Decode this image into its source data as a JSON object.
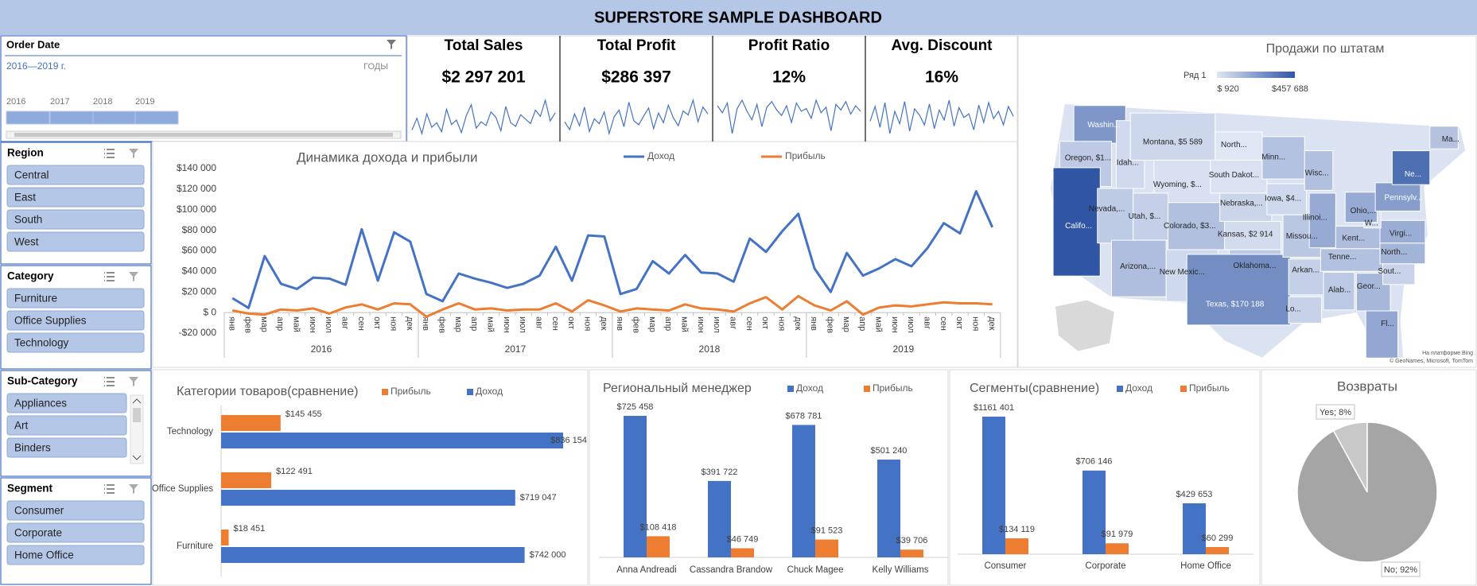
{
  "header": {
    "title": "SUPERSTORE SAMPLE  DASHBOARD"
  },
  "timeline": {
    "title": "Order Date",
    "range": "2016—2019 г.",
    "unit": "ГОДЫ",
    "years": [
      "2016",
      "2017",
      "2018",
      "2019"
    ]
  },
  "kpis": [
    {
      "title": "Total Sales",
      "value": "$2 297 201",
      "spark": [
        22,
        35,
        18,
        40,
        25,
        30,
        20,
        45,
        28,
        33,
        19,
        38,
        50,
        24,
        31,
        27,
        42,
        36,
        21,
        48,
        30,
        26,
        39,
        34,
        29,
        44,
        37,
        55,
        32,
        41
      ]
    },
    {
      "title": "Total Profit",
      "value": "$286 397",
      "spark": [
        30,
        22,
        38,
        26,
        45,
        20,
        33,
        28,
        40,
        18,
        35,
        42,
        25,
        50,
        31,
        27,
        36,
        44,
        23,
        39,
        29,
        47,
        34,
        26,
        41,
        37,
        52,
        30,
        45,
        38
      ]
    },
    {
      "title": "Profit Ratio",
      "value": "12%",
      "spark": [
        40,
        35,
        42,
        20,
        38,
        44,
        36,
        30,
        41,
        25,
        39,
        43,
        37,
        33,
        40,
        28,
        42,
        36,
        38,
        31,
        44,
        35,
        39,
        22,
        41,
        37,
        43,
        34,
        40,
        36
      ]
    },
    {
      "title": "Avg. Discount",
      "value": "16%",
      "spark": [
        30,
        42,
        25,
        45,
        20,
        38,
        28,
        46,
        22,
        40,
        35,
        27,
        44,
        24,
        39,
        31,
        47,
        26,
        41,
        33,
        36,
        23,
        43,
        29,
        45,
        32,
        38,
        27,
        42,
        34
      ]
    }
  ],
  "slicers": [
    {
      "title": "Region",
      "items": [
        "Central",
        "East",
        "South",
        "West"
      ]
    },
    {
      "title": "Category",
      "items": [
        "Furniture",
        "Office Supplies",
        "Technology"
      ]
    },
    {
      "title": "Sub-Category",
      "items": [
        "Appliances",
        "Art",
        "Binders"
      ]
    },
    {
      "title": "Segment",
      "items": [
        "Consumer",
        "Corporate",
        "Home Office"
      ]
    }
  ],
  "chart_data": [
    {
      "type": "line",
      "title": "Динамика дохода и прибыли",
      "categories": [
        "янв",
        "фев",
        "мар",
        "апр",
        "май",
        "июн",
        "июл",
        "авг",
        "сен",
        "окт",
        "ноя",
        "дек",
        "янв",
        "фев",
        "мар",
        "апр",
        "май",
        "июн",
        "июл",
        "авг",
        "сен",
        "окт",
        "ноя",
        "дек",
        "янв",
        "фев",
        "мар",
        "апр",
        "май",
        "июн",
        "июл",
        "авг",
        "сен",
        "окт",
        "ноя",
        "дек",
        "янв",
        "фев",
        "мар",
        "апр",
        "май",
        "июн",
        "июл",
        "авг",
        "сен",
        "окт",
        "ноя",
        "дек"
      ],
      "year_labels": [
        "2016",
        "2017",
        "2018",
        "2019"
      ],
      "ylim": [
        -20000,
        140000
      ],
      "yticks": [
        {
          "value": -20000,
          "label": "-$20 000"
        },
        {
          "value": 0,
          "label": "$ 0"
        },
        {
          "value": 20000,
          "label": "$20 000"
        },
        {
          "value": 40000,
          "label": "$40 000"
        },
        {
          "value": 60000,
          "label": "$60 000"
        },
        {
          "value": 80000,
          "label": "$80 000"
        },
        {
          "value": 100000,
          "label": "$100 000"
        },
        {
          "value": 120000,
          "label": "$120 000"
        },
        {
          "value": 140000,
          "label": "$140 000"
        }
      ],
      "grid": false,
      "series": [
        {
          "name": "Доход",
          "color": "#4472c4",
          "values": [
            14000,
            4500,
            55000,
            28000,
            23000,
            34000,
            33000,
            27000,
            81000,
            31000,
            78000,
            69000,
            18000,
            11000,
            38000,
            33000,
            29000,
            24000,
            28000,
            36000,
            64000,
            31000,
            75000,
            74000,
            18000,
            23000,
            50000,
            38000,
            56000,
            39000,
            38000,
            30000,
            72000,
            59000,
            79000,
            96000,
            43000,
            20000,
            58000,
            36000,
            43000,
            52000,
            45000,
            63000,
            87000,
            77000,
            118000,
            83000
          ]
        },
        {
          "name": "Прибыль",
          "color": "#ed7d31",
          "values": [
            2000,
            -1000,
            -2000,
            3000,
            2000,
            4000,
            -1000,
            5000,
            8000,
            3000,
            9000,
            8000,
            -4000,
            3000,
            9000,
            3000,
            4000,
            2000,
            3000,
            3000,
            9000,
            1000,
            12000,
            7000,
            1000,
            4000,
            3000,
            2000,
            8000,
            4000,
            3000,
            1000,
            9000,
            15000,
            3000,
            16000,
            7000,
            2000,
            11000,
            -2000,
            5000,
            7000,
            6000,
            8000,
            10000,
            9000,
            9000,
            8000
          ]
        }
      ]
    },
    {
      "type": "barh",
      "title": "Категории товаров(сравнение)",
      "categories": [
        "Technology",
        "Office Supplies",
        "Furniture"
      ],
      "series": [
        {
          "name": "Прибыль",
          "color": "#ed7d31",
          "values": [
            145455,
            122491,
            18451
          ],
          "value_labels": [
            "$145 455",
            "$122 491",
            "$18 451"
          ]
        },
        {
          "name": "Доход",
          "color": "#4472c4",
          "values": [
            836154,
            719047,
            742000
          ],
          "value_labels": [
            "$836 154",
            "$719 047",
            "$742 000"
          ]
        }
      ]
    },
    {
      "type": "bar",
      "title": "Региональный менеджер",
      "categories": [
        "Anna Andreadi",
        "Cassandra Brandow",
        "Chuck Magee",
        "Kelly Williams"
      ],
      "series": [
        {
          "name": "Доход",
          "color": "#4472c4",
          "values": [
            725458,
            391722,
            678781,
            501240
          ],
          "value_labels": [
            "$725 458",
            "$391 722",
            "$678 781",
            "$501 240"
          ]
        },
        {
          "name": "Прибыль",
          "color": "#ed7d31",
          "values": [
            108418,
            46749,
            91523,
            39706
          ],
          "value_labels": [
            "$108 418",
            "$46 749",
            "$91 523",
            "$39 706"
          ]
        }
      ]
    },
    {
      "type": "bar",
      "title": "Сегменты(сравнение)",
      "categories": [
        "Consumer",
        "Corporate",
        "Home Office"
      ],
      "series": [
        {
          "name": "Доход",
          "color": "#4472c4",
          "values": [
            1161401,
            706146,
            429653
          ],
          "value_labels": [
            "$1161 401",
            "$706 146",
            "$429 653"
          ]
        },
        {
          "name": "Прибыль",
          "color": "#ed7d31",
          "values": [
            134119,
            91979,
            60299
          ],
          "value_labels": [
            "$134 119",
            "$91 979",
            "$60 299"
          ]
        }
      ]
    },
    {
      "type": "pie",
      "title": "Возвраты",
      "categories": [
        "Yes",
        "No"
      ],
      "values": [
        8,
        92
      ],
      "value_labels": [
        "Yes; 8%",
        "No; 92%"
      ],
      "colors": [
        "#c8c8c8",
        "#a5a5a5"
      ]
    },
    {
      "type": "map",
      "title": "Продажи по штатам",
      "legend_title": "Ряд 1",
      "legend_min": {
        "value": 920,
        "label": "$ 920"
      },
      "legend_max": {
        "value": 457688,
        "label": "$457 688"
      },
      "colors": [
        "#dfe6f4",
        "#2f55a4"
      ],
      "states": [
        {
          "label": "Washin...",
          "value": 138641
        },
        {
          "label": "Oregon, $1...",
          "value": 17431
        },
        {
          "label": "Califo...",
          "value": 457688
        },
        {
          "label": "Nevada,...",
          "value": 16729
        },
        {
          "label": "Idah...",
          "value": 4382
        },
        {
          "label": "Montana, $5 589",
          "value": 5589
        },
        {
          "label": "Wyoming, $...",
          "value": 1603
        },
        {
          "label": "Utah, $...",
          "value": 11220
        },
        {
          "label": "Arizona,...",
          "value": 35282
        },
        {
          "label": "Colorado, $3...",
          "value": 32108
        },
        {
          "label": "New Mexic...",
          "value": 4784
        },
        {
          "label": "North...",
          "value": 920
        },
        {
          "label": "South Dakot...",
          "value": 1316
        },
        {
          "label": "Nebraska,...",
          "value": 7465
        },
        {
          "label": "Kansas, $2 914",
          "value": 2914
        },
        {
          "label": "Oklahoma...",
          "value": 19683
        },
        {
          "label": "Texas, $170 188",
          "value": 170188
        },
        {
          "label": "Minn...",
          "value": 29863
        },
        {
          "label": "Iowa, $4...",
          "value": 4580
        },
        {
          "label": "Missou...",
          "value": 22205
        },
        {
          "label": "Arkan...",
          "value": 11678
        },
        {
          "label": "Lo...",
          "value": 9217
        },
        {
          "label": "Wisc...",
          "value": 32115
        },
        {
          "label": "Illinoi...",
          "value": 80166
        },
        {
          "label": "Kent...",
          "value": 36592
        },
        {
          "label": "Tenne...",
          "value": 30662
        },
        {
          "label": "Alab...",
          "value": 19511
        },
        {
          "label": "Geor...",
          "value": 49096
        },
        {
          "label": "Fl...",
          "value": 89474
        },
        {
          "label": "Sout...",
          "value": 8482
        },
        {
          "label": "North...",
          "value": 55603
        },
        {
          "label": "Virgi...",
          "value": 70637
        },
        {
          "label": "W...",
          "value": 1210
        },
        {
          "label": "Ohio,...",
          "value": 78258
        },
        {
          "label": "Pennsylv...",
          "value": 116512
        },
        {
          "label": "Ne...",
          "value": 310876
        },
        {
          "label": "Ma...",
          "value": 28634
        }
      ],
      "credits": [
        "На платформе Bing",
        "© GeoNames, Microsoft, TomTom"
      ]
    }
  ]
}
